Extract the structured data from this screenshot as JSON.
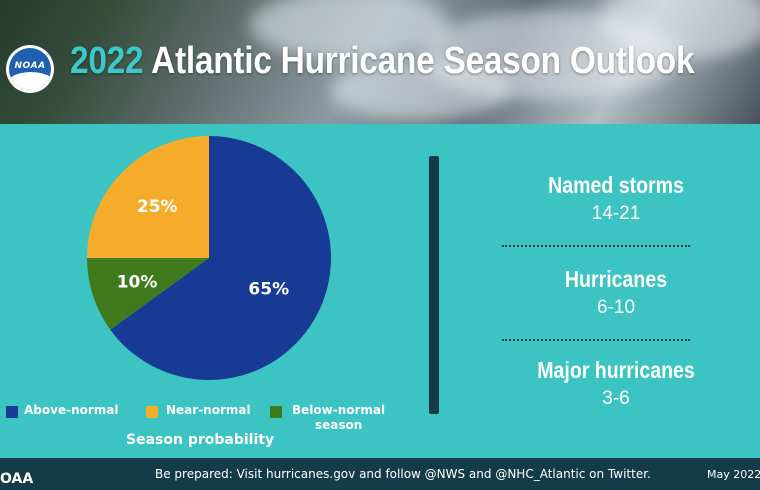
{
  "header": {
    "logo_text": "NOAA",
    "title_year": "2022",
    "title_rest": "Atlantic Hurricane Season Outlook"
  },
  "chart_data": {
    "type": "pie",
    "title": "Season probability",
    "categories": [
      "Above-normal",
      "Near-normal",
      "Below-normal season"
    ],
    "values": [
      65,
      25,
      10
    ],
    "labels": [
      "65%",
      "25%",
      "10%"
    ],
    "colors": [
      "#173b95",
      "#f4ac2a",
      "#3f7a1d"
    ],
    "legend_position": "bottom"
  },
  "legend": {
    "items": [
      {
        "label": "Above-normal",
        "color": "#173b95"
      },
      {
        "label": "Near-normal",
        "color": "#f4ac2a"
      },
      {
        "label_line1": "Below-normal",
        "label_line2": "season",
        "color": "#3f7a1d"
      }
    ],
    "caption": "Season probability"
  },
  "stats": [
    {
      "title": "Named storms",
      "value": "14-21"
    },
    {
      "title": "Hurricanes",
      "value": "6-10"
    },
    {
      "title": "Major hurricanes",
      "value": "3-6"
    }
  ],
  "footer": {
    "brand": "OAA",
    "note": "Be prepared: Visit hurricanes.gov and follow @NWS and @NHC_Atlantic on Twitter.",
    "date": "May 2022"
  },
  "colors": {
    "background": "#3cc4c2",
    "dark": "#143c48",
    "title_accent": "#3cc9c7"
  }
}
